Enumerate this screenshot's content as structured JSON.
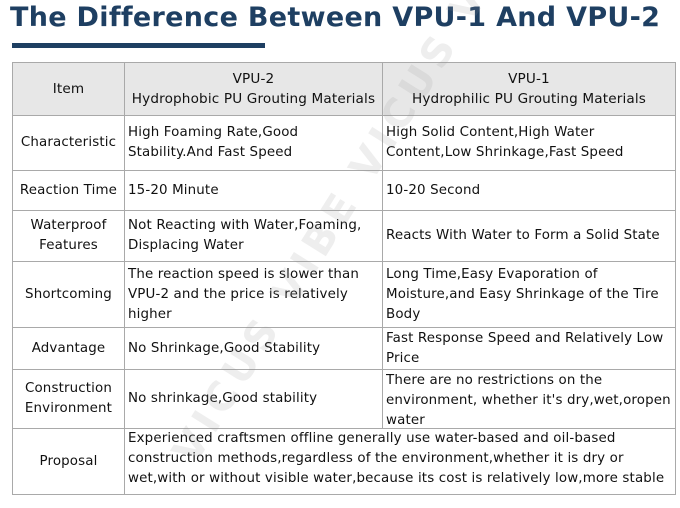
{
  "title": "The Difference Between VPU-1 And VPU-2",
  "watermark": "VICUS VIBE VICUS VIBE",
  "colors": {
    "title": "#1e3f62",
    "header_bg": "#e7e7e7",
    "border": "#a9a9a9"
  },
  "table": {
    "header": {
      "item": "Item",
      "vpu2_name": "VPU-2",
      "vpu2_desc": "Hydrophobic PU Grouting Materials",
      "vpu1_name": "VPU-1",
      "vpu1_desc": "Hydrophilic PU Grouting Materials"
    },
    "rows": [
      {
        "item": "Characteristic",
        "vpu2": "High Foaming Rate,Good Stability.And Fast Speed",
        "vpu1": "High Solid Content,High Water Content,Low Shrinkage,Fast Speed"
      },
      {
        "item": "Reaction Time",
        "vpu2": "15-20 Minute",
        "vpu1": "10-20 Second"
      },
      {
        "item": "Waterproof Features",
        "vpu2": "Not Reacting with Water,Foaming, Displacing Water",
        "vpu1": "Reacts With Water to Form a Solid State"
      },
      {
        "item": "Shortcoming",
        "vpu2": "The reaction speed is slower than VPU-2 and the price is relatively higher",
        "vpu1": "Long Time,Easy Evaporation of Moisture,and Easy Shrinkage of the Tire Body"
      },
      {
        "item": "Advantage",
        "vpu2": "No Shrinkage,Good Stability",
        "vpu1": "Fast Response Speed and Relatively Low Price"
      },
      {
        "item": "Construction Environment",
        "vpu2": "No shrinkage,Good stability",
        "vpu1": "There are no restrictions on the environment, whether it's dry,wet,oropen water"
      },
      {
        "item": "Proposal",
        "proposal": "Experienced craftsmen offline generally use water-based and oil-based construction methods,regardless of the environment,whether it is dry or wet,with or without visible water,because its cost is relatively low,more stable and durable"
      }
    ]
  }
}
